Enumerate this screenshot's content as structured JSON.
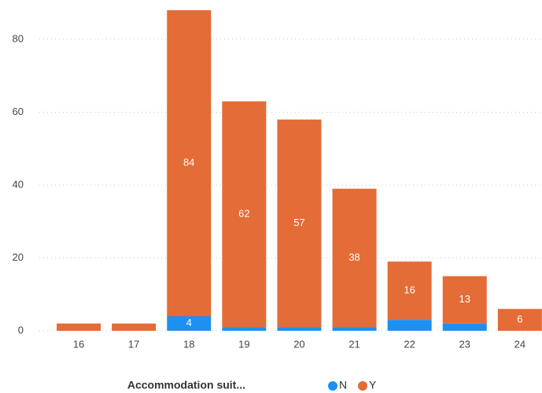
{
  "chart_data": {
    "type": "bar",
    "stacked": true,
    "categories": [
      "16",
      "17",
      "18",
      "19",
      "20",
      "21",
      "22",
      "23",
      "24"
    ],
    "series": [
      {
        "name": "N",
        "color": "#1e90f0",
        "values": [
          0,
          0,
          4,
          1,
          1,
          1,
          3,
          2,
          0
        ]
      },
      {
        "name": "Y",
        "color": "#e36c37",
        "values": [
          2,
          2,
          84,
          62,
          57,
          38,
          16,
          13,
          6
        ]
      }
    ],
    "ylim": [
      0,
      88
    ],
    "yticks": [
      0,
      20,
      40,
      60,
      80
    ],
    "grid": true,
    "legend_title": "Accommodation suit...",
    "legend_position": "bottom"
  }
}
